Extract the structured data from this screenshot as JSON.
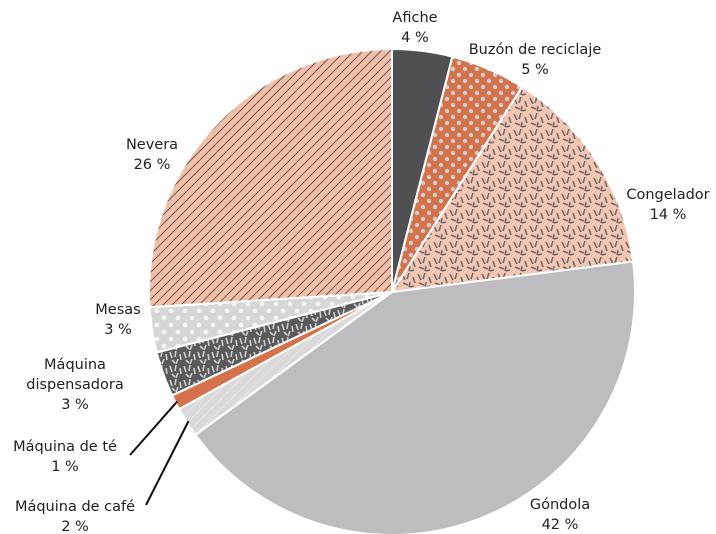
{
  "chart_data": {
    "type": "pie",
    "categories": [
      "Afiche",
      "Buzón de reciclaje",
      "Congelador",
      "Góndola",
      "Máquina de café",
      "Máquina de té",
      "Máquina dispensadora",
      "Mesas",
      "Nevera"
    ],
    "values": [
      4,
      5,
      14,
      42,
      2,
      1,
      3,
      3,
      26
    ],
    "value_labels": [
      "4 %",
      "5 %",
      "14 %",
      "42 %",
      "2 %",
      "1 %",
      "3 %",
      "3 %",
      "26 %"
    ],
    "colors": [
      "#505052",
      "#d4724b",
      "#f4c6b2",
      "#bdbdbf",
      "#d9d9da",
      "#d4724b",
      "#5a5a5c",
      "#d6d6d7",
      "#f1bea8"
    ]
  }
}
